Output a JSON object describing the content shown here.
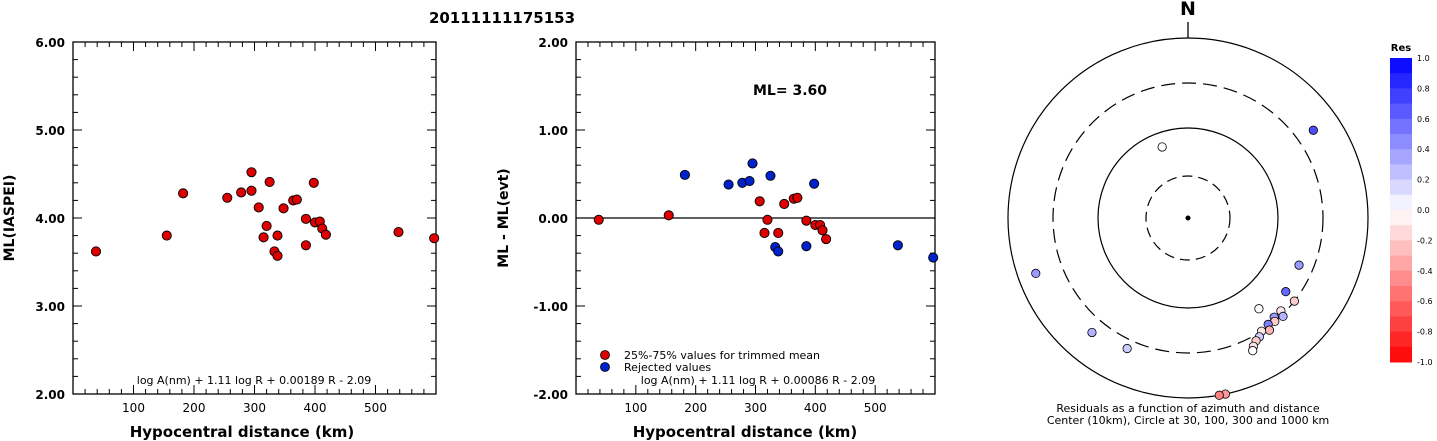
{
  "title": "20111111175153",
  "chart_data": [
    {
      "type": "scatter",
      "xlabel": "Hypocentral distance (km)",
      "ylabel": "ML(IASPEI)",
      "xlim": [
        0,
        600
      ],
      "ylim": [
        2.0,
        6.0
      ],
      "xticks": [
        "100",
        "200",
        "300",
        "400",
        "500"
      ],
      "yticks": [
        "2.00",
        "3.00",
        "4.00",
        "5.00",
        "6.00"
      ],
      "formula": "log A(nm) + 1.11 log R + 0.00189 R - 2.09",
      "series": [
        {
          "color": "#dd0000",
          "points": [
            [
              38,
              3.62
            ],
            [
              155,
              3.8
            ],
            [
              182,
              4.28
            ],
            [
              255,
              4.23
            ],
            [
              278,
              4.29
            ],
            [
              295,
              4.31
            ],
            [
              295,
              4.52
            ],
            [
              307,
              4.12
            ],
            [
              315,
              3.78
            ],
            [
              320,
              3.91
            ],
            [
              325,
              4.41
            ],
            [
              333,
              3.62
            ],
            [
              338,
              3.57
            ],
            [
              338,
              3.8
            ],
            [
              348,
              4.11
            ],
            [
              364,
              4.2
            ],
            [
              370,
              4.21
            ],
            [
              385,
              3.99
            ],
            [
              385,
              3.69
            ],
            [
              398,
              4.4
            ],
            [
              400,
              3.95
            ],
            [
              408,
              3.96
            ],
            [
              412,
              3.88
            ],
            [
              418,
              3.81
            ],
            [
              538,
              3.84
            ],
            [
              597,
              3.77
            ]
          ]
        }
      ]
    },
    {
      "type": "scatter",
      "xlabel": "Hypocentral distance (km)",
      "ylabel": "ML - ML(evt)",
      "xlim": [
        0,
        600
      ],
      "ylim": [
        -2.0,
        2.0
      ],
      "xticks": [
        "100",
        "200",
        "300",
        "400",
        "500"
      ],
      "yticks": [
        "-2.00",
        "-1.00",
        "0.00",
        "1.00",
        "2.00"
      ],
      "annotation": "ML= 3.60",
      "formula": "log A(nm) + 1.11 log R + 0.00086 R - 2.09",
      "legend": [
        "25%-75% values for trimmed mean",
        "Rejected values"
      ],
      "series": [
        {
          "name": "25%-75% values for trimmed mean",
          "color": "#dd0000",
          "points": [
            [
              38,
              -0.02
            ],
            [
              155,
              0.03
            ],
            [
              307,
              0.19
            ],
            [
              315,
              -0.17
            ],
            [
              320,
              -0.02
            ],
            [
              338,
              -0.17
            ],
            [
              348,
              0.16
            ],
            [
              364,
              0.22
            ],
            [
              370,
              0.23
            ],
            [
              385,
              -0.03
            ],
            [
              400,
              -0.08
            ],
            [
              408,
              -0.08
            ],
            [
              412,
              -0.14
            ],
            [
              418,
              -0.24
            ]
          ]
        },
        {
          "name": "Rejected values",
          "color": "#0022cc",
          "points": [
            [
              182,
              0.49
            ],
            [
              255,
              0.38
            ],
            [
              278,
              0.4
            ],
            [
              290,
              0.42
            ],
            [
              295,
              0.62
            ],
            [
              325,
              0.48
            ],
            [
              333,
              -0.33
            ],
            [
              338,
              -0.38
            ],
            [
              385,
              -0.32
            ],
            [
              398,
              0.39
            ],
            [
              538,
              -0.31
            ],
            [
              597,
              -0.45
            ]
          ]
        }
      ]
    }
  ],
  "residual_map": {
    "north_label": "N",
    "caption_line1": "Residuals as a function of azimuth and distance",
    "caption_line2": "Center (10km), Circle at 30, 100, 300 and 1000 km",
    "colorbar_title": "Res",
    "colorbar_ticks": [
      "1.0",
      "0.8",
      "0.6",
      "0.4",
      "0.2",
      "0.0",
      "-0.2",
      "-0.4",
      "-0.6",
      "-0.8",
      "-1.0"
    ],
    "stations": [
      {
        "azimuth": 340,
        "distance_frac": 0.42,
        "residual": 0.0
      },
      {
        "azimuth": 128,
        "distance_frac": 0.75,
        "residual": -0.2
      },
      {
        "azimuth": 127,
        "distance_frac": 0.68,
        "residual": 0.6
      },
      {
        "azimuth": 135,
        "distance_frac": 0.73,
        "residual": -0.1
      },
      {
        "azimuth": 136,
        "distance_frac": 0.76,
        "residual": 0.3
      },
      {
        "azimuth": 139,
        "distance_frac": 0.73,
        "residual": 0.4
      },
      {
        "azimuth": 140,
        "distance_frac": 0.75,
        "residual": -0.2
      },
      {
        "azimuth": 143,
        "distance_frac": 0.74,
        "residual": 0.5
      },
      {
        "azimuth": 144,
        "distance_frac": 0.77,
        "residual": -0.3
      },
      {
        "azimuth": 147,
        "distance_frac": 0.75,
        "residual": -0.1
      },
      {
        "azimuth": 149,
        "distance_frac": 0.77,
        "residual": 0.2
      },
      {
        "azimuth": 151,
        "distance_frac": 0.78,
        "residual": -0.2
      },
      {
        "azimuth": 153,
        "distance_frac": 0.8,
        "residual": -0.1
      },
      {
        "azimuth": 154,
        "distance_frac": 0.82,
        "residual": 0.0
      },
      {
        "azimuth": 142,
        "distance_frac": 0.64,
        "residual": 0.0
      },
      {
        "azimuth": 113,
        "distance_frac": 0.67,
        "residual": 0.4
      },
      {
        "azimuth": 55,
        "distance_frac": 0.85,
        "residual": 0.7
      },
      {
        "azimuth": 168,
        "distance_frac": 1.0,
        "residual": -0.4
      },
      {
        "azimuth": 170,
        "distance_frac": 1.0,
        "residual": -0.5
      },
      {
        "azimuth": 205,
        "distance_frac": 0.8,
        "residual": 0.2
      },
      {
        "azimuth": 220,
        "distance_frac": 0.83,
        "residual": 0.3
      },
      {
        "azimuth": 250,
        "distance_frac": 0.9,
        "residual": 0.4
      }
    ]
  }
}
